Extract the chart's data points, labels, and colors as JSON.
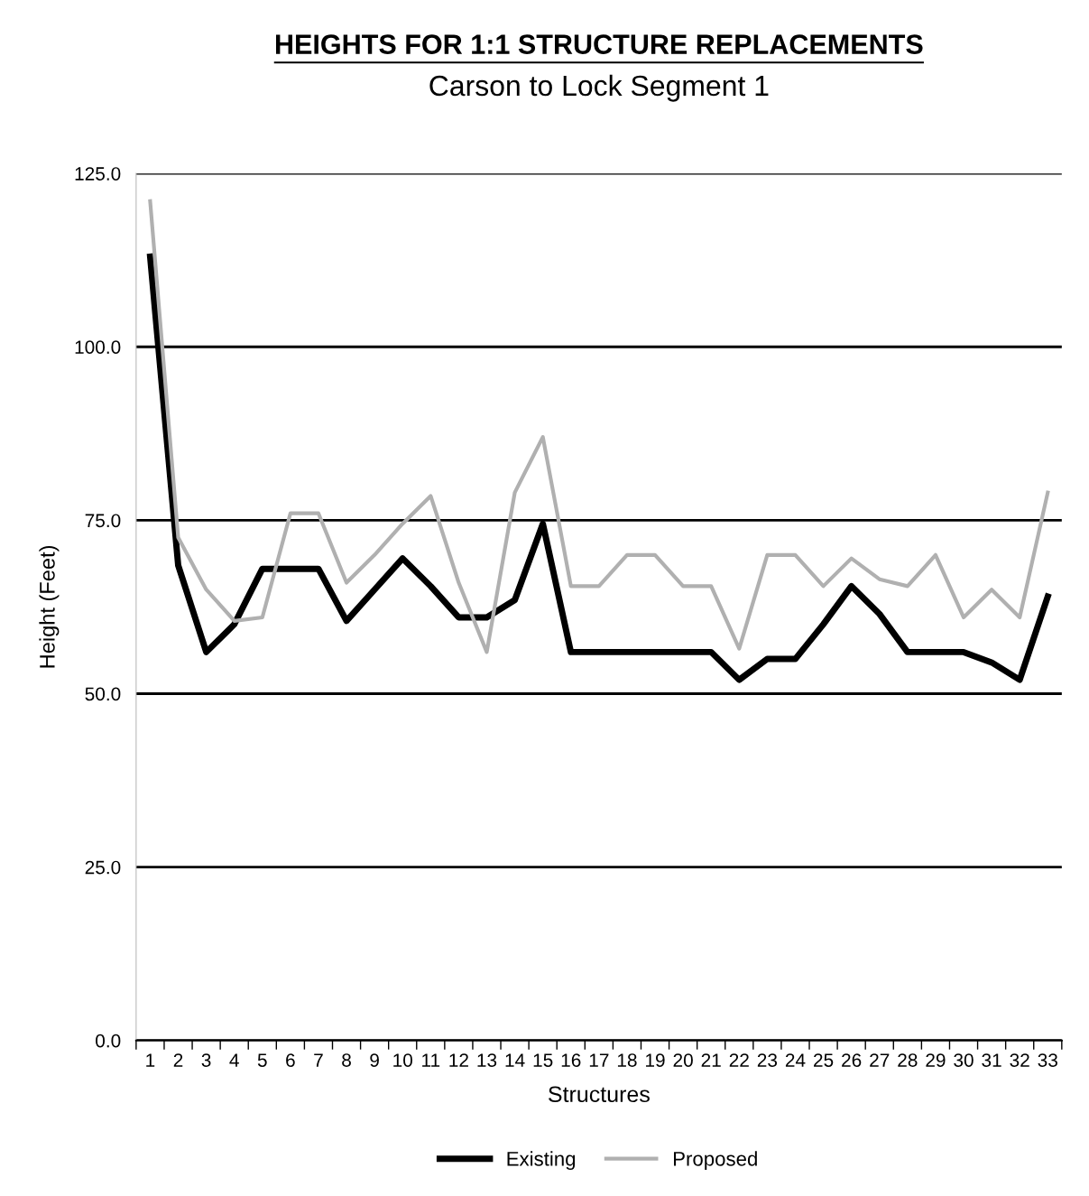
{
  "chart_data": {
    "type": "line",
    "title": "HEIGHTS FOR 1:1 STRUCTURE REPLACEMENTS",
    "subtitle": "Carson to Lock Segment 1",
    "xlabel": "Structures",
    "ylabel": "Height (Feet)",
    "categories": [
      "1",
      "2",
      "3",
      "4",
      "5",
      "6",
      "7",
      "8",
      "9",
      "10",
      "11",
      "12",
      "13",
      "14",
      "15",
      "16",
      "17",
      "18",
      "19",
      "20",
      "21",
      "22",
      "23",
      "24",
      "25",
      "26",
      "27",
      "28",
      "29",
      "30",
      "31",
      "32",
      "33"
    ],
    "series": [
      {
        "name": "Existing",
        "color": "#000000",
        "values": [
          113,
          68.5,
          56,
          60,
          68,
          68,
          68,
          60.5,
          65,
          69.5,
          65.5,
          61,
          61,
          63.5,
          74.5,
          56,
          56,
          56,
          56,
          56,
          56,
          52,
          55,
          55,
          60,
          65.5,
          61.5,
          56,
          56,
          56,
          54.5,
          52,
          64
        ]
      },
      {
        "name": "Proposed",
        "color": "#b0b0b0",
        "values": [
          121,
          72.5,
          65,
          60.5,
          61,
          76,
          76,
          66,
          70,
          74.5,
          78.5,
          66,
          56,
          79,
          87,
          65.5,
          65.5,
          70,
          70,
          65.5,
          65.5,
          56.5,
          70,
          70,
          65.5,
          69.5,
          66.5,
          65.5,
          70,
          61,
          65,
          61,
          79
        ]
      }
    ],
    "ylim": [
      0,
      125
    ],
    "yticks": [
      {
        "value": 0,
        "label": "0.0"
      },
      {
        "value": 25,
        "label": "25.0"
      },
      {
        "value": 50,
        "label": "50.0"
      },
      {
        "value": 75,
        "label": "75.0"
      },
      {
        "value": 100,
        "label": "100.0"
      },
      {
        "value": 125,
        "label": "125.0"
      }
    ],
    "grid": "y",
    "legend": "bottom",
    "marker": "none",
    "line_style": "solid"
  }
}
